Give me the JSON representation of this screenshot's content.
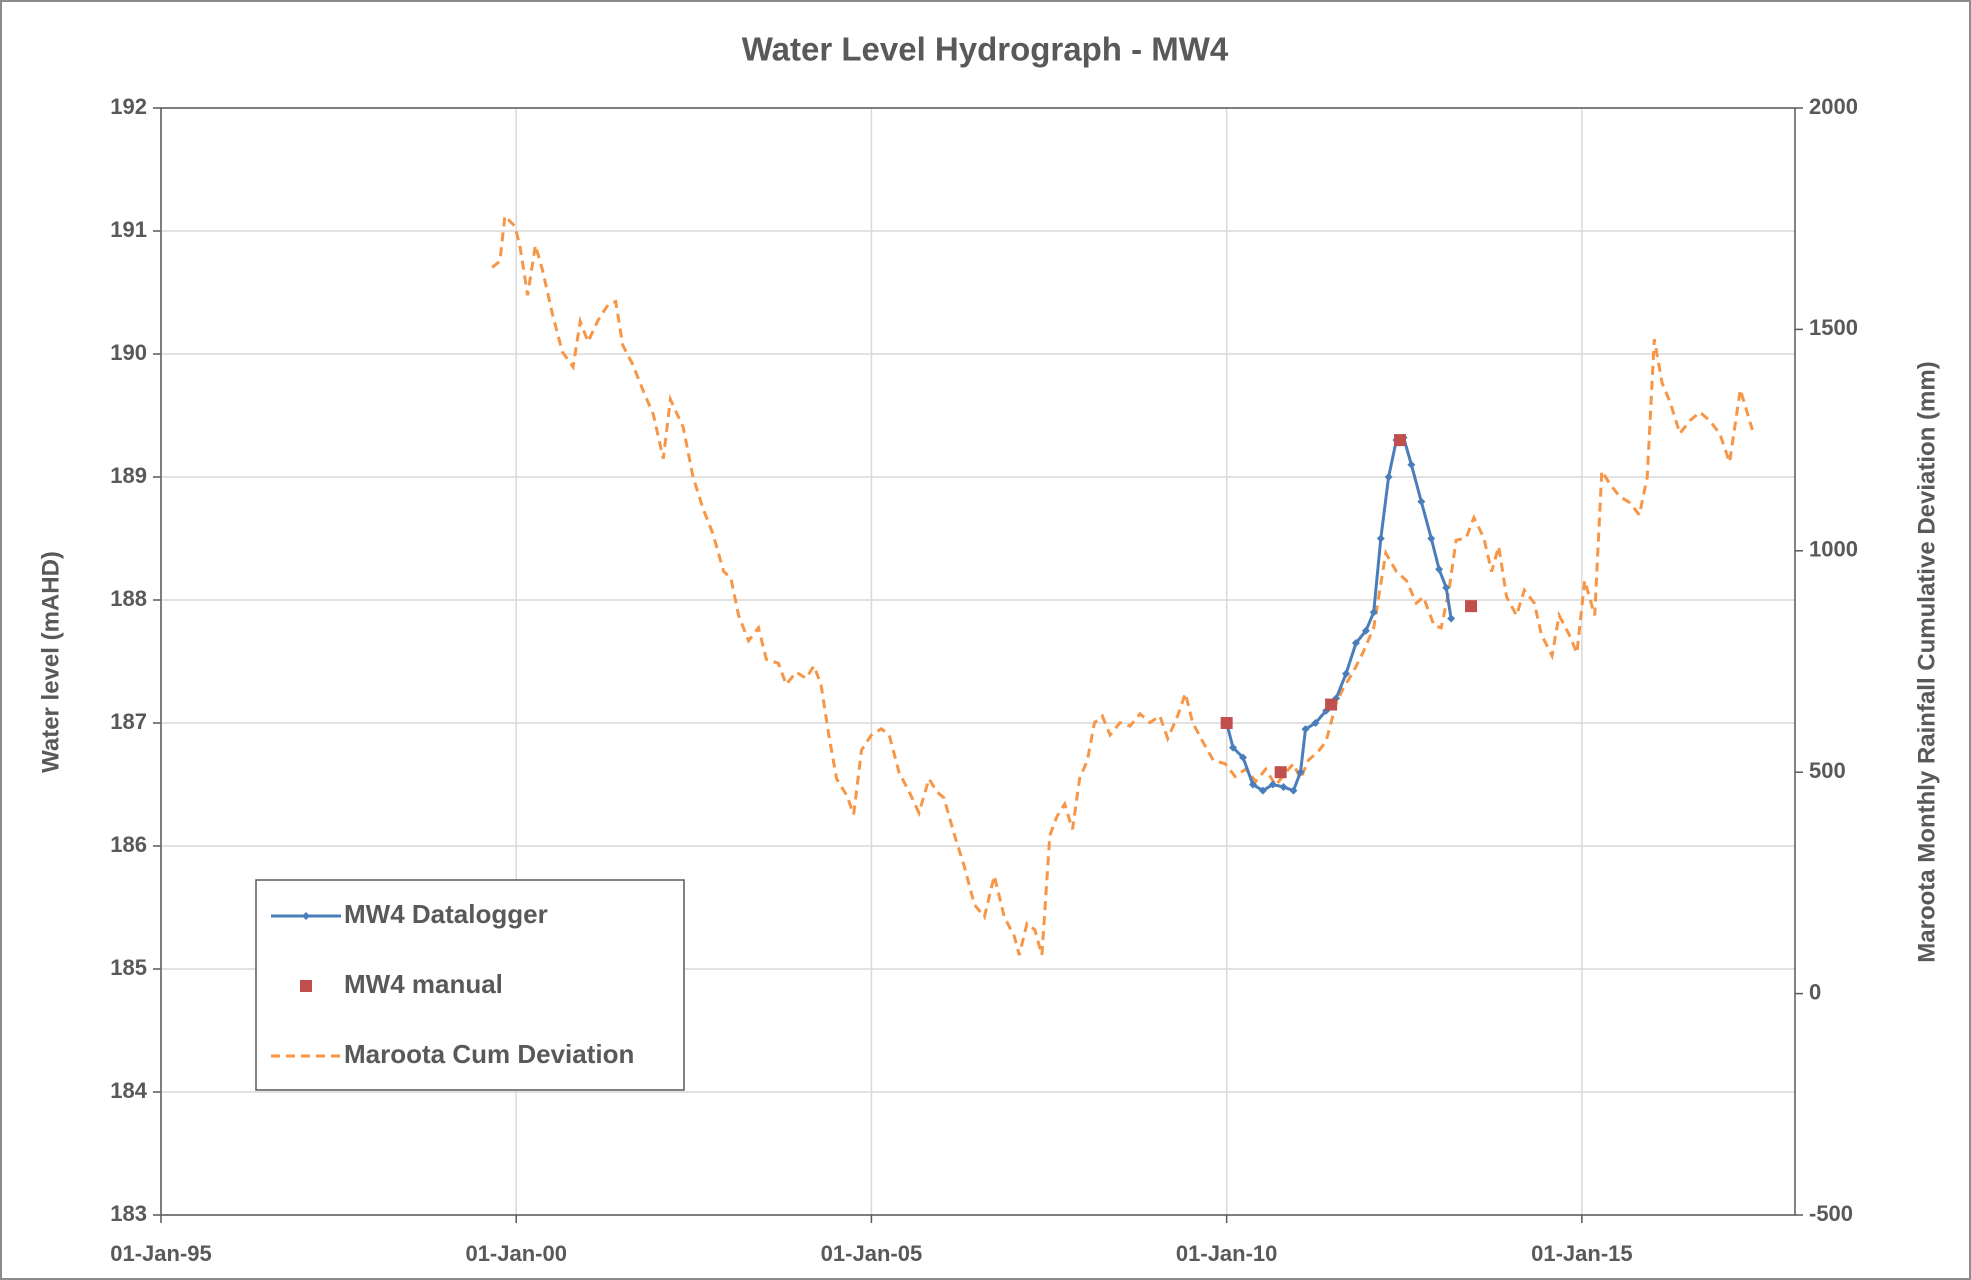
{
  "chart_data": {
    "type": "line",
    "title": "Water Level Hydrograph - MW4",
    "y_label": "Water level (mAHD)",
    "y2_label": "Maroota Monthly Rainfall Cumulative Deviation (mm)",
    "xlim": [
      1995,
      2018
    ],
    "xticks": [
      {
        "value": 1995,
        "label": "01-Jan-95"
      },
      {
        "value": 2000,
        "label": "01-Jan-00"
      },
      {
        "value": 2005,
        "label": "01-Jan-05"
      },
      {
        "value": 2010,
        "label": "01-Jan-10"
      },
      {
        "value": 2015,
        "label": "01-Jan-15"
      }
    ],
    "ylim": [
      183,
      192
    ],
    "yticks": [
      183,
      184,
      185,
      186,
      187,
      188,
      189,
      190,
      191,
      192
    ],
    "y2lim": [
      -500,
      2000
    ],
    "y2ticks": [
      -500,
      0,
      500,
      1000,
      1500,
      2000
    ],
    "grid": true,
    "legend": "lower left",
    "series": [
      {
        "name": "MW4 Datalogger",
        "color": "#4a7ebb",
        "style": "line-marker",
        "x": [
          2010.0,
          2010.09,
          2010.23,
          2010.37,
          2010.51,
          2010.65,
          2010.8,
          2010.94,
          2011.04,
          2011.11,
          2011.25,
          2011.4,
          2011.54,
          2011.68,
          2011.82,
          2011.96,
          2012.07,
          2012.17,
          2012.28,
          2012.39,
          2012.49,
          2012.6,
          2012.74,
          2012.88,
          2012.99,
          2013.09,
          2013.16
        ],
        "values": [
          187.0,
          186.8,
          186.72,
          186.5,
          186.45,
          186.5,
          186.48,
          186.45,
          186.6,
          186.95,
          187.0,
          187.1,
          187.2,
          187.4,
          187.65,
          187.75,
          187.9,
          188.5,
          189.0,
          189.3,
          189.32,
          189.1,
          188.8,
          188.5,
          188.25,
          188.1,
          187.85
        ]
      },
      {
        "name": "MW4 manual",
        "color": "#c0504d",
        "style": "marker",
        "x": [
          2010.0,
          2010.76,
          2011.47,
          2012.44,
          2013.44
        ],
        "values": [
          187.0,
          186.6,
          187.15,
          189.3,
          187.95
        ]
      },
      {
        "name": "Maroota Cum Deviation",
        "color": "#f79646",
        "style": "dashed",
        "axis": "y2",
        "x": [
          1999.66,
          1999.77,
          1999.84,
          1999.98,
          2000.05,
          2000.16,
          2000.27,
          2000.37,
          2000.51,
          2000.65,
          2000.8,
          2000.9,
          2001.01,
          2001.15,
          2001.29,
          2001.4,
          2001.5,
          2001.64,
          2001.78,
          2001.93,
          2002.07,
          2002.17,
          2002.35,
          2002.49,
          2002.63,
          2002.77,
          2002.92,
          2003.02,
          2003.13,
          2003.27,
          2003.41,
          2003.52,
          2003.69,
          2003.8,
          2003.94,
          2004.08,
          2004.19,
          2004.29,
          2004.4,
          2004.51,
          2004.65,
          2004.75,
          2004.86,
          2005.0,
          2005.14,
          2005.25,
          2005.39,
          2005.53,
          2005.67,
          2005.81,
          2005.92,
          2006.02,
          2006.17,
          2006.31,
          2006.45,
          2006.59,
          2006.73,
          2006.87,
          2007.01,
          2007.08,
          2007.19,
          2007.3,
          2007.4,
          2007.51,
          2007.61,
          2007.72,
          2007.83,
          2007.93,
          2008.04,
          2008.14,
          2008.25,
          2008.36,
          2008.5,
          2008.64,
          2008.78,
          2008.92,
          2009.06,
          2009.17,
          2009.31,
          2009.42,
          2009.52,
          2009.66,
          2009.81,
          2009.98,
          2010.12,
          2010.27,
          2010.41,
          2010.55,
          2010.69,
          2010.83,
          2010.94,
          2011.04,
          2011.15,
          2011.29,
          2011.4,
          2011.54,
          2011.64,
          2011.78,
          2011.93,
          2012.07,
          2012.17,
          2012.24,
          2012.39,
          2012.53,
          2012.67,
          2012.77,
          2012.92,
          2013.02,
          2013.13,
          2013.23,
          2013.37,
          2013.48,
          2013.62,
          2013.73,
          2013.83,
          2013.94,
          2014.08,
          2014.19,
          2014.33,
          2014.43,
          2014.58,
          2014.68,
          2014.82,
          2014.93,
          2015.04,
          2015.18,
          2015.28,
          2015.39,
          2015.53,
          2015.67,
          2015.81,
          2015.92,
          2016.02,
          2016.13,
          2016.24,
          2016.38,
          2016.52,
          2016.66,
          2016.8,
          2016.94,
          2017.08,
          2017.23,
          2017.4
        ],
        "values": [
          1640,
          1654,
          1756,
          1733,
          1690,
          1577,
          1690,
          1634,
          1535,
          1449,
          1415,
          1518,
          1472,
          1520,
          1555,
          1563,
          1464,
          1421,
          1364,
          1308,
          1208,
          1342,
          1279,
          1166,
          1095,
          1038,
          953,
          939,
          854,
          797,
          826,
          755,
          746,
          698,
          726,
          712,
          740,
          698,
          584,
          485,
          448,
          405,
          550,
          584,
          598,
          584,
          499,
          456,
          408,
          485,
          456,
          442,
          357,
          286,
          201,
          173,
          266,
          173,
          130,
          87,
          158,
          144,
          87,
          357,
          400,
          428,
          371,
          485,
          527,
          612,
          627,
          584,
          612,
          604,
          632,
          612,
          627,
          576,
          627,
          678,
          612,
          570,
          527,
          519,
          490,
          507,
          479,
          507,
          470,
          499,
          519,
          485,
          527,
          547,
          570,
          655,
          689,
          726,
          774,
          826,
          925,
          995,
          953,
          933,
          882,
          896,
          831,
          826,
          911,
          1024,
          1029,
          1075,
          1029,
          953,
          1010,
          896,
          854,
          911,
          882,
          811,
          763,
          854,
          811,
          769,
          933,
          854,
          1180,
          1152,
          1123,
          1109,
          1081,
          1166,
          1478,
          1379,
          1336,
          1265,
          1294,
          1313,
          1294,
          1265,
          1200,
          1364,
          1273
        ]
      }
    ]
  }
}
